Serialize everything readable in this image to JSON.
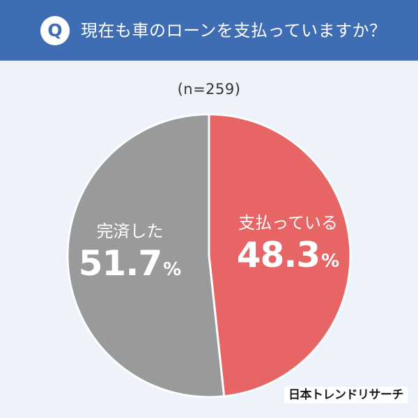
{
  "header": {
    "badge": "Q",
    "question": "現在も車のローンを支払っていますか？"
  },
  "sample": "(n=259)",
  "colors": {
    "header": "#3f6db3",
    "background": "#eef3fb",
    "paying": "#e86565",
    "paid_off": "#999a9c"
  },
  "chart_data": {
    "type": "pie",
    "title": "現在も車のローンを支払っていますか？",
    "slices": [
      {
        "label": "支払っている",
        "value": 48.3,
        "unit": "%",
        "color": "#e86565"
      },
      {
        "label": "完済した",
        "value": 51.7,
        "unit": "%",
        "color": "#999a9c"
      }
    ]
  },
  "logo": "日本トレンドリサーチ"
}
